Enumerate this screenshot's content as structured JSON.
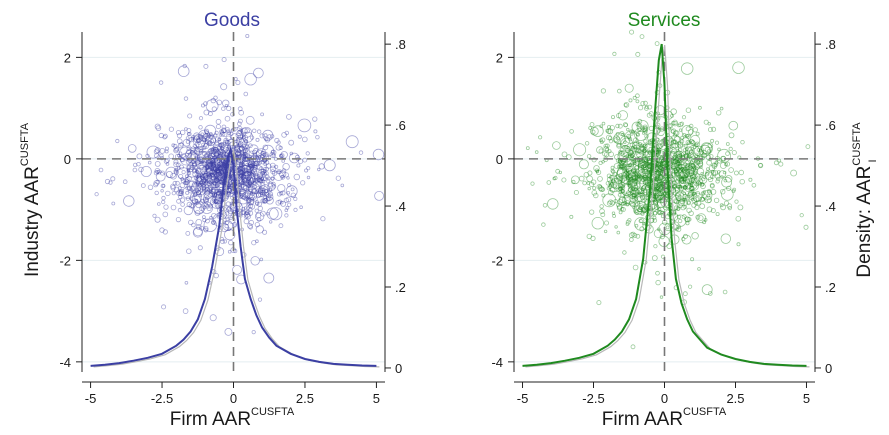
{
  "chart_data": [
    {
      "type": "scatter",
      "title": "Goods",
      "title_color": "#3b3fa3",
      "xlabel": "Firm AAR",
      "xlabel_sup": "CUSFTA",
      "ylabel": "Industry AAR",
      "ylabel_sup": "CUSFTA",
      "y2label": "",
      "xlim": [
        -5.3,
        5.3
      ],
      "ylim": [
        -4.2,
        2.5
      ],
      "y2lim": [
        -0.01,
        0.83
      ],
      "x_ticks": [
        -5,
        -2.5,
        0,
        2.5,
        5
      ],
      "x_tick_labels": [
        "-5",
        "-2.5",
        "0",
        "2.5",
        "5"
      ],
      "y_ticks": [
        -4,
        -2,
        0,
        2
      ],
      "y_tick_labels": [
        "-4",
        "-2",
        "0",
        "2"
      ],
      "y2_ticks": [
        0,
        0.2,
        0.4,
        0.6,
        0.8
      ],
      "y2_tick_labels": [
        "0",
        ".2",
        ".4",
        ".6",
        ".8"
      ],
      "grid": true,
      "reference_lines": {
        "x": 0,
        "y": 0
      },
      "color": "#3b3fa3",
      "scatter_center": [
        -0.3,
        -0.3
      ],
      "scatter_spread": [
        0.9,
        0.45
      ],
      "density": {
        "x": [
          -5,
          -4.5,
          -4,
          -3.5,
          -3,
          -2.5,
          -2,
          -1.75,
          -1.5,
          -1.25,
          -1,
          -0.75,
          -0.5,
          -0.35,
          -0.2,
          -0.1,
          0,
          0.1,
          0.25,
          0.4,
          0.6,
          0.8,
          1,
          1.25,
          1.5,
          2,
          2.5,
          3,
          3.5,
          4,
          4.5,
          5
        ],
        "y": [
          0.005,
          0.008,
          0.012,
          0.018,
          0.025,
          0.035,
          0.055,
          0.07,
          0.09,
          0.12,
          0.17,
          0.25,
          0.35,
          0.45,
          0.52,
          0.54,
          0.5,
          0.4,
          0.3,
          0.22,
          0.17,
          0.13,
          0.1,
          0.075,
          0.055,
          0.035,
          0.022,
          0.015,
          0.01,
          0.008,
          0.006,
          0.005
        ]
      }
    },
    {
      "type": "scatter",
      "title": "Services",
      "title_color": "#1f8a1f",
      "xlabel": "Firm AAR",
      "xlabel_sup": "CUSFTA",
      "ylabel": "",
      "ylabel_sup": "",
      "y2label": "Density: AAR",
      "y2label_sup": "CUSFTA",
      "y2label_sub": "I",
      "xlim": [
        -5.3,
        5.3
      ],
      "ylim": [
        -4.2,
        2.5
      ],
      "y2lim": [
        -0.01,
        0.83
      ],
      "x_ticks": [
        -5,
        -2.5,
        0,
        2.5,
        5
      ],
      "x_tick_labels": [
        "-5",
        "-2.5",
        "0",
        "2.5",
        "5"
      ],
      "y_ticks": [
        -4,
        -2,
        0,
        2
      ],
      "y_tick_labels": [
        "-4",
        "-2",
        "0",
        "2"
      ],
      "y2_ticks": [
        0,
        0.2,
        0.4,
        0.6,
        0.8
      ],
      "y2_tick_labels": [
        "0",
        ".2",
        ".4",
        ".6",
        ".8"
      ],
      "grid": true,
      "reference_lines": {
        "x": 0,
        "y": 0
      },
      "color": "#1f8a1f",
      "scatter_center": [
        -0.2,
        -0.3
      ],
      "scatter_spread": [
        1.0,
        0.5
      ],
      "density": {
        "x": [
          -5,
          -4.5,
          -4,
          -3.5,
          -3,
          -2.5,
          -2,
          -1.75,
          -1.5,
          -1.25,
          -1,
          -0.75,
          -0.5,
          -0.35,
          -0.2,
          -0.1,
          0,
          0.1,
          0.25,
          0.4,
          0.6,
          0.8,
          1,
          1.25,
          1.5,
          2,
          2.5,
          3,
          3.5,
          4,
          4.5,
          5
        ],
        "y": [
          0.005,
          0.008,
          0.012,
          0.018,
          0.025,
          0.035,
          0.055,
          0.07,
          0.09,
          0.12,
          0.17,
          0.27,
          0.45,
          0.62,
          0.76,
          0.8,
          0.7,
          0.5,
          0.32,
          0.22,
          0.16,
          0.12,
          0.09,
          0.07,
          0.05,
          0.033,
          0.022,
          0.015,
          0.01,
          0.008,
          0.006,
          0.005
        ]
      }
    }
  ]
}
